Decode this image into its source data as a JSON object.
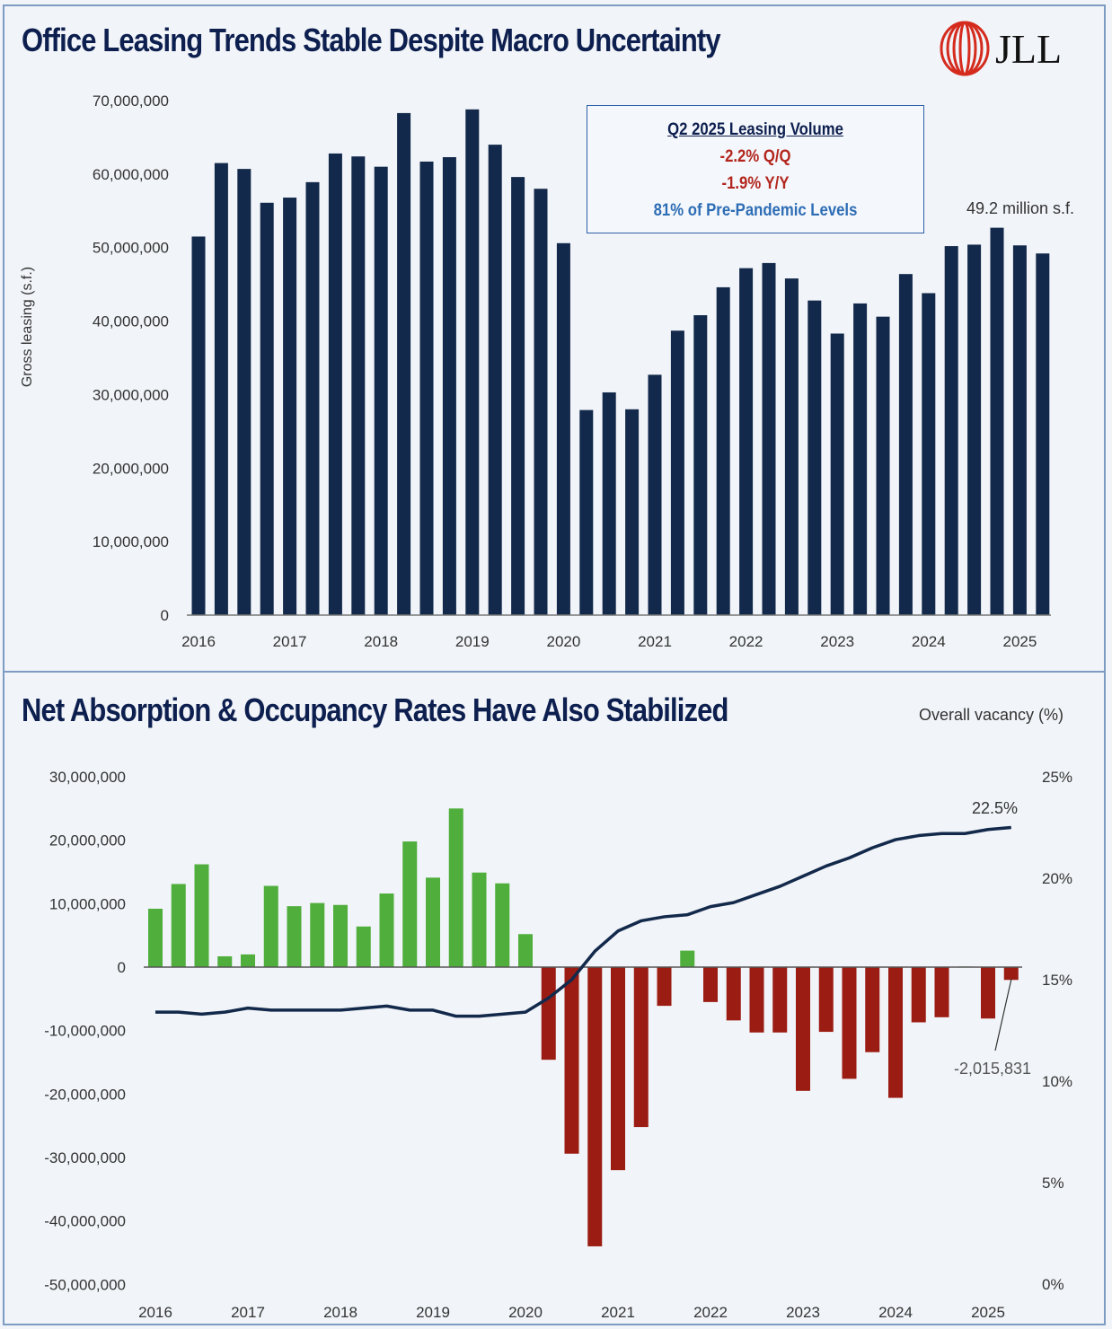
{
  "brand": {
    "logo_text": "JLL",
    "logo_color": "#d52b1e"
  },
  "colors": {
    "navy": "#13294b",
    "green": "#4fae3c",
    "red": "#9b1c12",
    "background": "#f1f4f8",
    "border": "#7d9cc4"
  },
  "callout": {
    "heading": "Q2 2025 Leasing Volume",
    "line1": "-2.2% Q/Q",
    "line2": "-1.9% Y/Y",
    "line3": "81% of Pre-Pandemic Levels"
  },
  "chart_data": [
    {
      "type": "bar",
      "title": "Office Leasing Trends Stable Despite Macro Uncertainty",
      "ylabel": "Gross leasing (s.f.)",
      "xlabel": "",
      "ylim": [
        0,
        70000000
      ],
      "yticks": [
        "0",
        "10,000,000",
        "20,000,000",
        "30,000,000",
        "40,000,000",
        "50,000,000",
        "60,000,000",
        "70,000,000"
      ],
      "xticks": [
        "2016",
        "2017",
        "2018",
        "2019",
        "2020",
        "2021",
        "2022",
        "2023",
        "2024",
        "2025"
      ],
      "categories": [
        "2016 Q1",
        "2016 Q2",
        "2016 Q3",
        "2016 Q4",
        "2017 Q1",
        "2017 Q2",
        "2017 Q3",
        "2017 Q4",
        "2018 Q1",
        "2018 Q2",
        "2018 Q3",
        "2018 Q4",
        "2019 Q1",
        "2019 Q2",
        "2019 Q3",
        "2019 Q4",
        "2020 Q1",
        "2020 Q2",
        "2020 Q3",
        "2020 Q4",
        "2021 Q1",
        "2021 Q2",
        "2021 Q3",
        "2021 Q4",
        "2022 Q1",
        "2022 Q2",
        "2022 Q3",
        "2022 Q4",
        "2023 Q1",
        "2023 Q2",
        "2023 Q3",
        "2023 Q4",
        "2024 Q1",
        "2024 Q2",
        "2024 Q3",
        "2024 Q4",
        "2025 Q1",
        "2025 Q2"
      ],
      "values": [
        51500000,
        61500000,
        60700000,
        56100000,
        56800000,
        58900000,
        62800000,
        62400000,
        61000000,
        68300000,
        61700000,
        62300000,
        68800000,
        64000000,
        59600000,
        58000000,
        50600000,
        27900000,
        30300000,
        28000000,
        32700000,
        38700000,
        40800000,
        44600000,
        47200000,
        47900000,
        45800000,
        42800000,
        38300000,
        42400000,
        40600000,
        46400000,
        43800000,
        50200000,
        50400000,
        52700000,
        50300000,
        49200000
      ],
      "annotation": "49.2 million s.f.",
      "grid": false
    },
    {
      "type": "bar+line",
      "title": "Net Absorption & Occupancy Rates Have Also Stabilized",
      "ylim": [
        -50000000,
        30000000
      ],
      "yticks": [
        "-50,000,000",
        "-40,000,000",
        "-30,000,000",
        "-20,000,000",
        "-10,000,000",
        "0",
        "10,000,000",
        "20,000,000",
        "30,000,000"
      ],
      "y2label": "Overall vacancy (%)",
      "y2lim": [
        0,
        25
      ],
      "y2ticks": [
        "0%",
        "5%",
        "10%",
        "15%",
        "20%",
        "25%"
      ],
      "xticks": [
        "2016",
        "2017",
        "2018",
        "2019",
        "2020",
        "2021",
        "2022",
        "2023",
        "2024",
        "2025"
      ],
      "categories": [
        "2016 Q1",
        "2016 Q2",
        "2016 Q3",
        "2016 Q4",
        "2017 Q1",
        "2017 Q2",
        "2017 Q3",
        "2017 Q4",
        "2018 Q1",
        "2018 Q2",
        "2018 Q3",
        "2018 Q4",
        "2019 Q1",
        "2019 Q2",
        "2019 Q3",
        "2019 Q4",
        "2020 Q1",
        "2020 Q2",
        "2020 Q3",
        "2020 Q4",
        "2021 Q1",
        "2021 Q2",
        "2021 Q3",
        "2021 Q4",
        "2022 Q1",
        "2022 Q2",
        "2022 Q3",
        "2022 Q4",
        "2023 Q1",
        "2023 Q2",
        "2023 Q3",
        "2023 Q4",
        "2024 Q1",
        "2024 Q2",
        "2024 Q3",
        "2024 Q4",
        "2025 Q1",
        "2025 Q2"
      ],
      "net_absorption": [
        9200000,
        13100000,
        16200000,
        1700000,
        2000000,
        12800000,
        9600000,
        10100000,
        9800000,
        6400000,
        11600000,
        19800000,
        14100000,
        25000000,
        14900000,
        13200000,
        5200000,
        -14600000,
        -29400000,
        -44000000,
        -32000000,
        -25200000,
        -6100000,
        2600000,
        -5500000,
        -8400000,
        -10300000,
        -10300000,
        -19500000,
        -10200000,
        -17600000,
        -13400000,
        -20600000,
        -8700000,
        -7900000,
        100000,
        -8100000,
        -2015831
      ],
      "vacancy": [
        13.4,
        13.4,
        13.3,
        13.4,
        13.6,
        13.5,
        13.5,
        13.5,
        13.5,
        13.6,
        13.7,
        13.5,
        13.5,
        13.2,
        13.2,
        13.3,
        13.4,
        14.1,
        15.0,
        16.4,
        17.4,
        17.9,
        18.1,
        18.2,
        18.6,
        18.8,
        19.2,
        19.6,
        20.1,
        20.6,
        21.0,
        21.5,
        21.9,
        22.1,
        22.2,
        22.2,
        22.4,
        22.5
      ],
      "annotations": {
        "vacancy_last": "22.5%",
        "absorption_last": "-2,015,831"
      },
      "grid": false
    }
  ]
}
